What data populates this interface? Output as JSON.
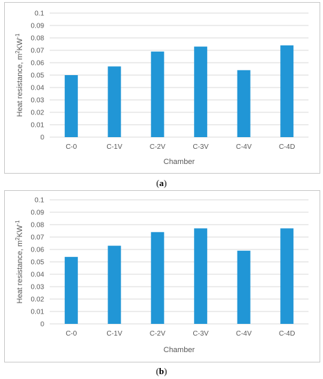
{
  "chart_data": [
    {
      "type": "bar",
      "panel": "a",
      "categories": [
        "C-0",
        "C-1V",
        "C-2V",
        "C-3V",
        "C-4V",
        "C-4D"
      ],
      "values": [
        0.05,
        0.057,
        0.069,
        0.073,
        0.054,
        0.074
      ],
      "title": "",
      "xlabel": "Chamber",
      "ylabel_main": "Heat resistance, m",
      "ylabel_sup1": "2",
      "ylabel_mid": "KW",
      "ylabel_sup2": "-1",
      "ylim": [
        0,
        0.1
      ],
      "yticks": [
        "0",
        "0.01",
        "0.02",
        "0.03",
        "0.04",
        "0.05",
        "0.06",
        "0.07",
        "0.08",
        "0.09",
        "0.1"
      ],
      "grid": true,
      "bar_color": "#2196d6",
      "grid_color": "#d9d9d9",
      "caption_open": "(",
      "caption_letter": "a",
      "caption_close": ")"
    },
    {
      "type": "bar",
      "panel": "b",
      "categories": [
        "C-0",
        "C-1V",
        "C-2V",
        "C-3V",
        "C-4V",
        "C-4D"
      ],
      "values": [
        0.054,
        0.063,
        0.074,
        0.077,
        0.059,
        0.077
      ],
      "title": "",
      "xlabel": "Chamber",
      "ylabel_main": "Heat resistance, m",
      "ylabel_sup1": "2",
      "ylabel_mid": "KW",
      "ylabel_sup2": "-1",
      "ylim": [
        0,
        0.1
      ],
      "yticks": [
        "0",
        "0.01",
        "0.02",
        "0.03",
        "0.04",
        "0.05",
        "0.06",
        "0.07",
        "0.08",
        "0.09",
        "0.1"
      ],
      "grid": true,
      "bar_color": "#2196d6",
      "grid_color": "#d9d9d9",
      "caption_open": "(",
      "caption_letter": "b",
      "caption_close": ")"
    }
  ]
}
